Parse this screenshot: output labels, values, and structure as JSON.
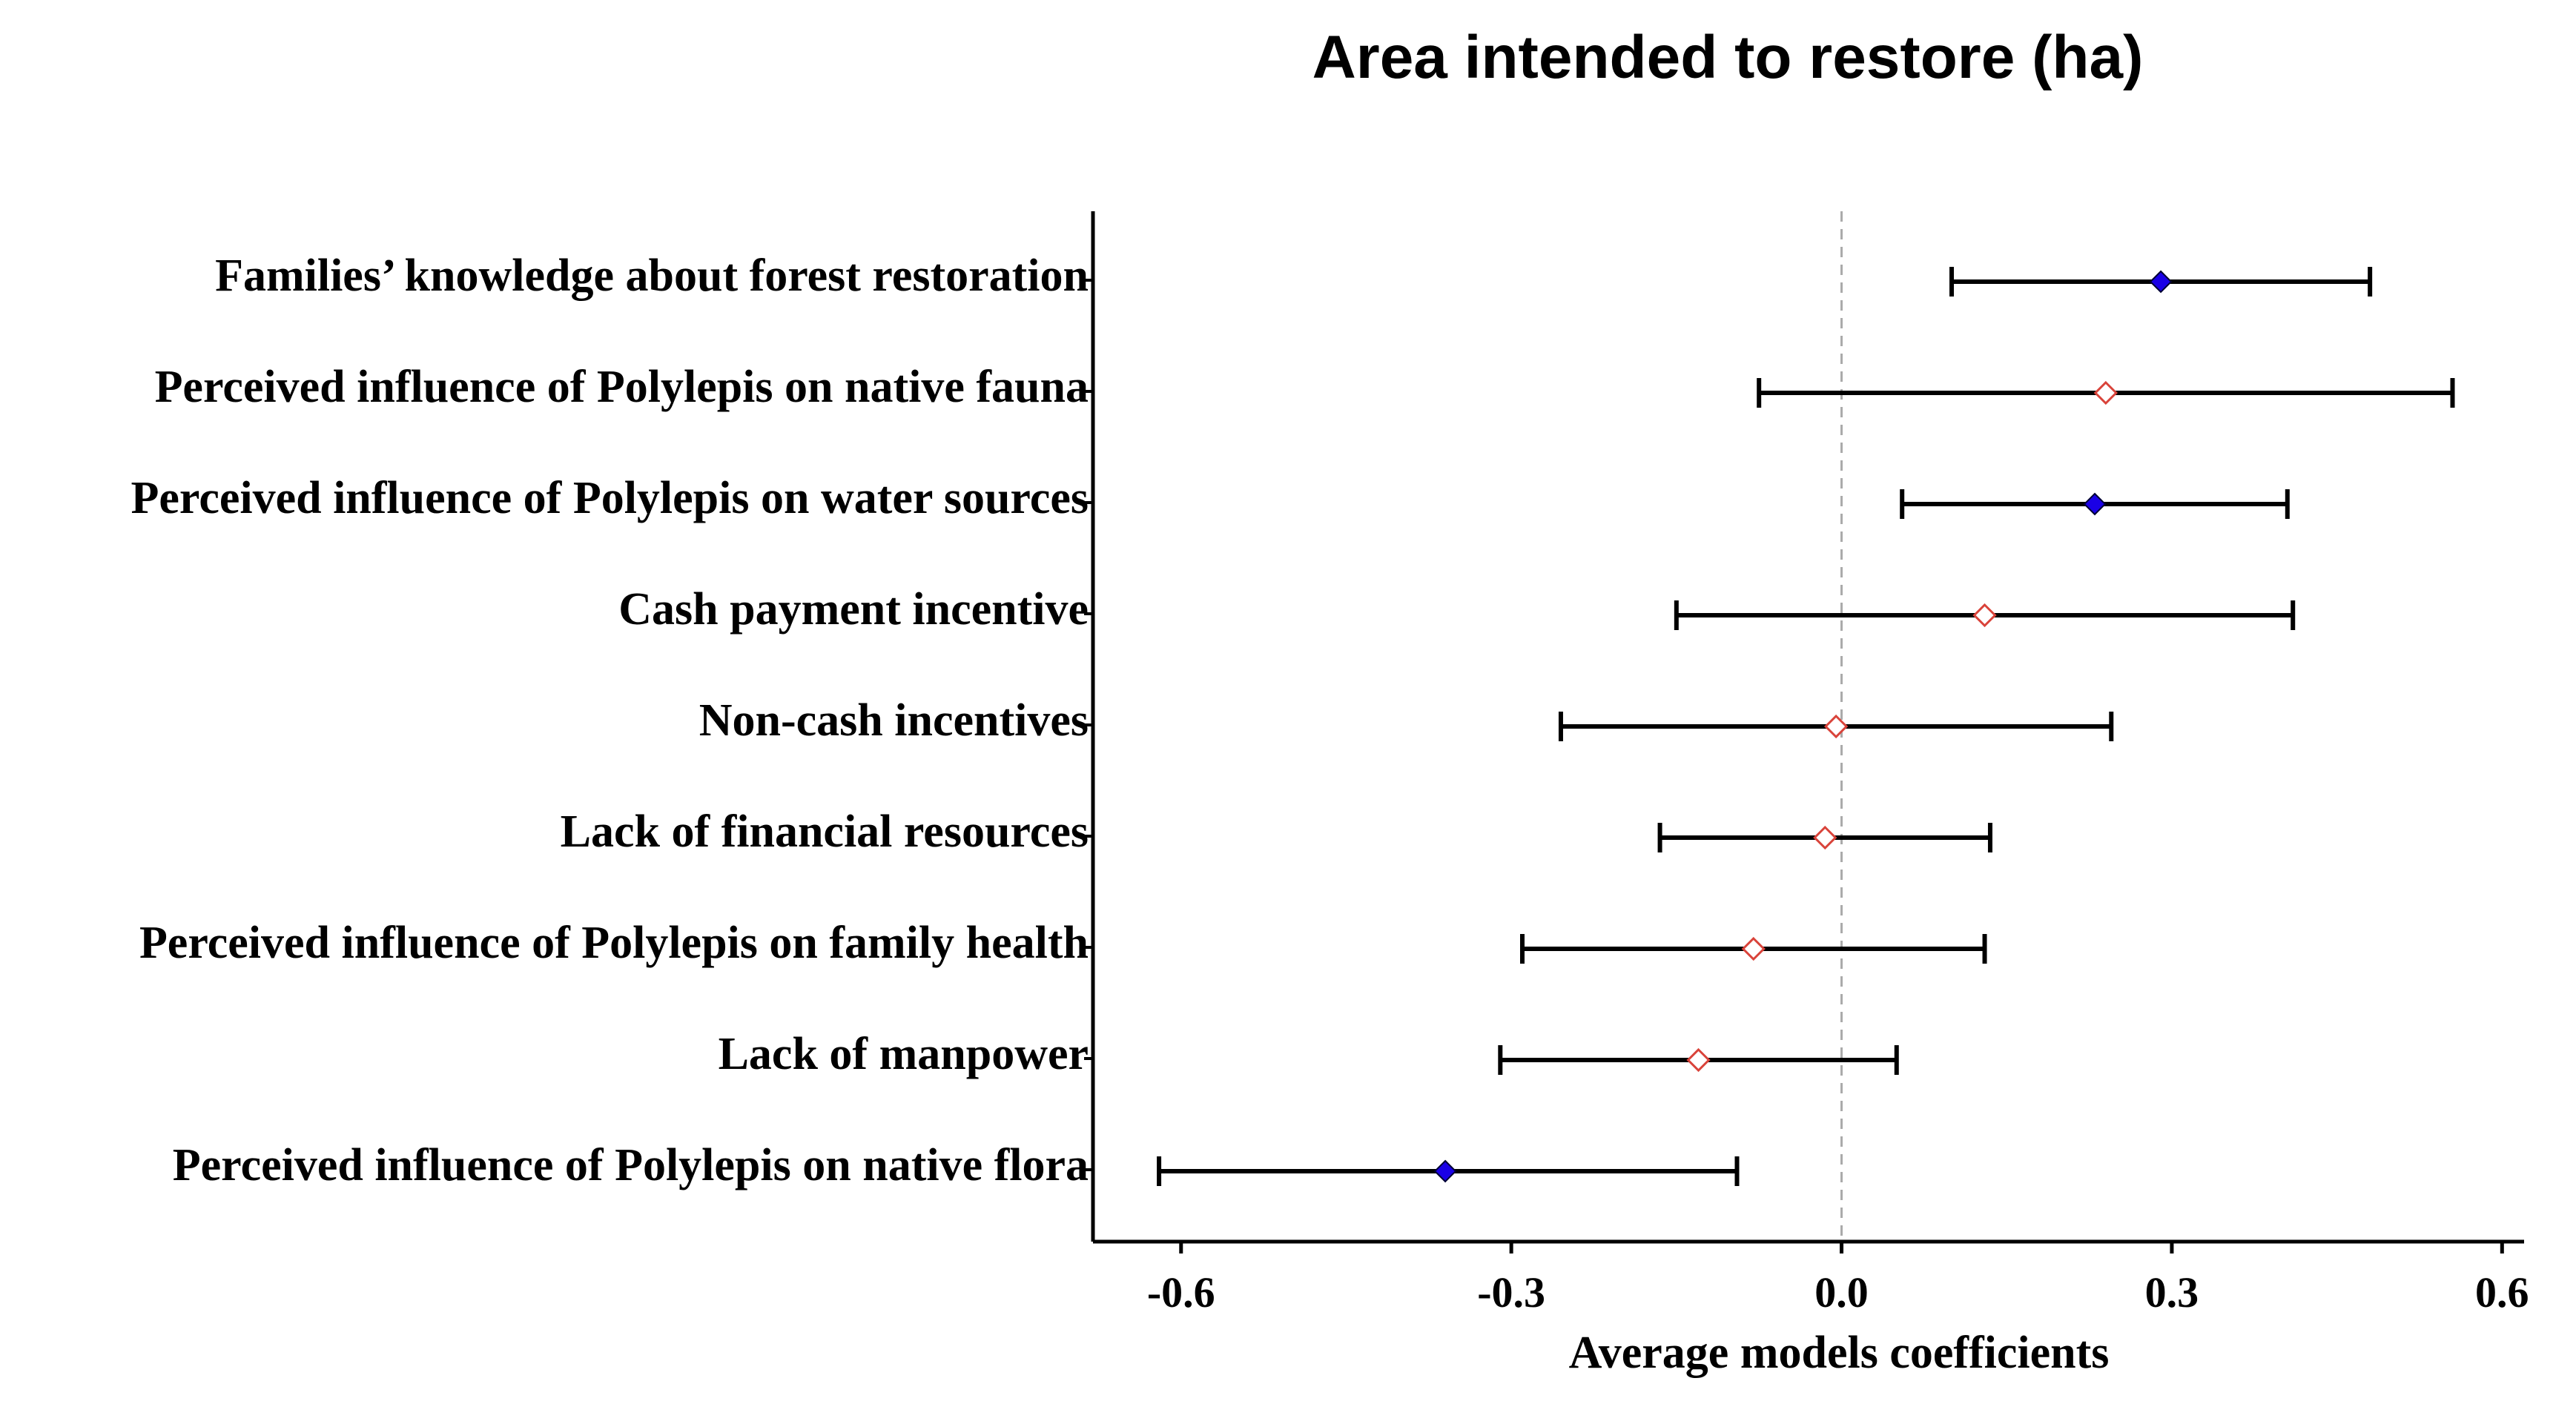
{
  "chart_data": {
    "type": "coefficient-plot",
    "title": "Area intended to restore (ha)",
    "xlabel": "Average models coefficients",
    "ylabel": "",
    "xlim": [
      -0.68,
      0.62
    ],
    "xticks": [
      -0.6,
      -0.3,
      0.0,
      0.3,
      0.6
    ],
    "xtick_labels": [
      "-0.6",
      "-0.3",
      "0.0",
      "0.3",
      "0.6"
    ],
    "reference_line": 0.0,
    "grid": false,
    "colors": {
      "significant_fill": "#1a00e6",
      "nonsignificant_fill": "#ffffff",
      "nonsignificant_stroke": "#d9433a",
      "errorbar": "#000000",
      "reference_line": "#aaaaaa"
    },
    "series": [
      {
        "label": "Families’ knowledge about forest restoration",
        "estimate": 0.29,
        "lower": 0.1,
        "upper": 0.48,
        "significant": true
      },
      {
        "label": "Perceived influence of Polylepis on native fauna",
        "estimate": 0.24,
        "lower": -0.075,
        "upper": 0.555,
        "significant": false
      },
      {
        "label": "Perceived influence of Polylepis on water sources",
        "estimate": 0.23,
        "lower": 0.055,
        "upper": 0.405,
        "significant": true
      },
      {
        "label": "Cash payment incentive",
        "estimate": 0.13,
        "lower": -0.15,
        "upper": 0.41,
        "significant": false
      },
      {
        "label": "Non-cash incentives",
        "estimate": -0.005,
        "lower": -0.255,
        "upper": 0.245,
        "significant": false
      },
      {
        "label": "Lack of financial resources",
        "estimate": -0.015,
        "lower": -0.165,
        "upper": 0.135,
        "significant": false
      },
      {
        "label": "Perceived influence of Polylepis on family health",
        "estimate": -0.08,
        "lower": -0.29,
        "upper": 0.13,
        "significant": false
      },
      {
        "label": "Lack of manpower",
        "estimate": -0.13,
        "lower": -0.31,
        "upper": 0.05,
        "significant": false
      },
      {
        "label": "Perceived influence of Polylepis on native flora",
        "estimate": -0.36,
        "lower": -0.62,
        "upper": -0.095,
        "significant": true
      }
    ]
  }
}
